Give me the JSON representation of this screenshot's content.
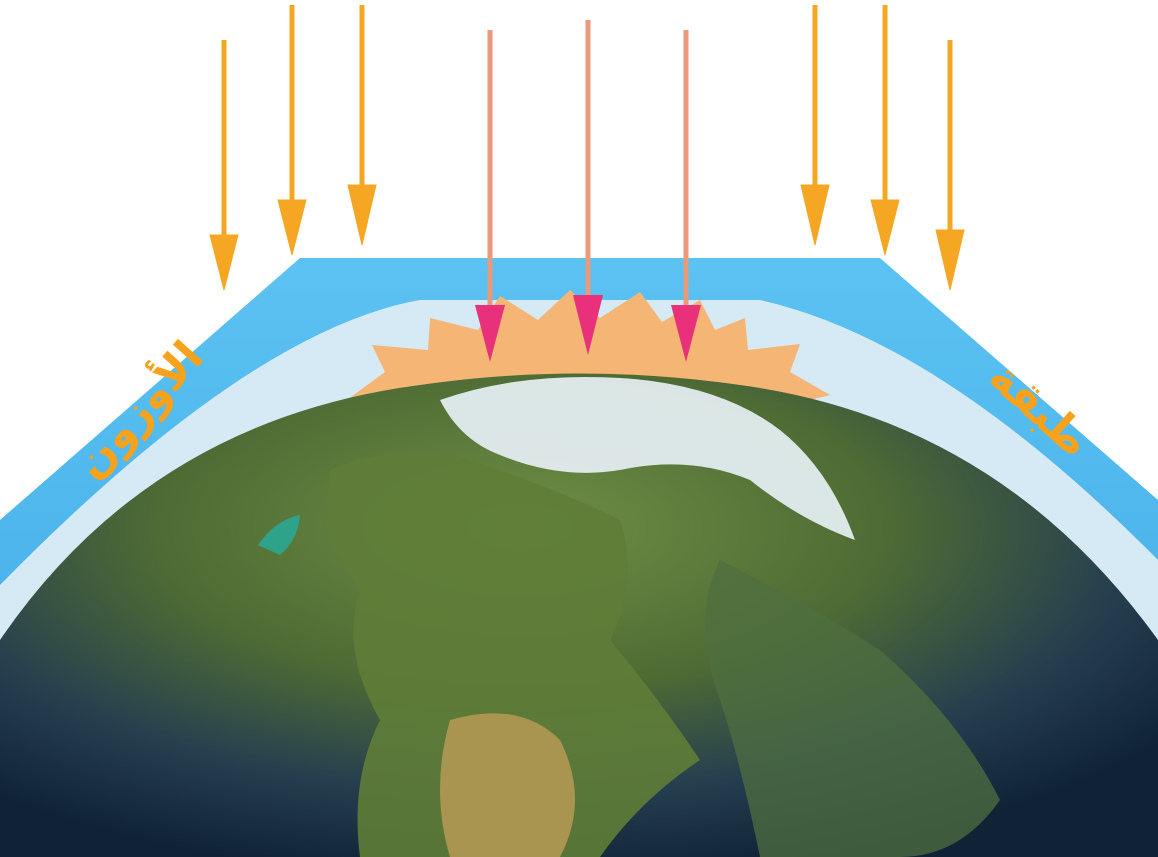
{
  "labels": {
    "left": "الأوزون",
    "right": "طبقة"
  },
  "colors": {
    "background": "#ffffff",
    "ozone_outer": "#5bbcef",
    "ozone_inner": "#d9ecf7",
    "sun_rays_reflected": "#f5a623",
    "uv_rays_through": "#e8317a",
    "flare": "#f4b06a",
    "label_text": "#f7a21d",
    "ocean": "#1c3550",
    "land_green": "#5a7a35",
    "ice": "#dfe9ee"
  },
  "icons": {
    "incoming_ray": "down-arrow-icon",
    "impact_flare": "starburst-icon",
    "planet": "earth-globe"
  }
}
